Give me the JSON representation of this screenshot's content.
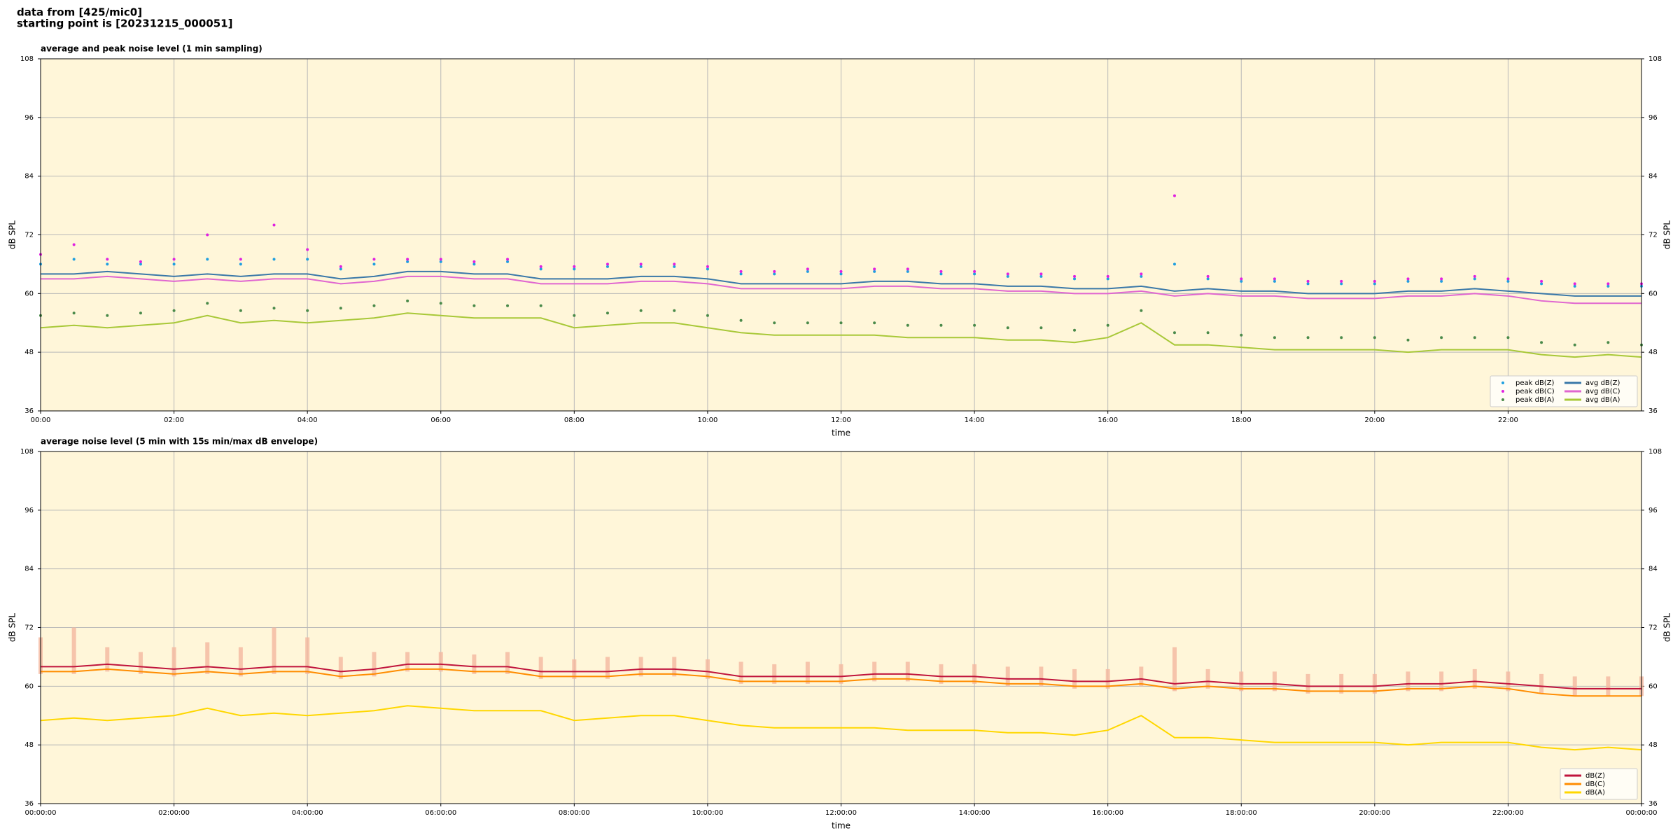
{
  "header": {
    "line1": "data from [425/mic0]",
    "line2": "starting point is [20231215_000051]"
  },
  "chart_data": [
    {
      "type": "combo",
      "title": "average and peak noise level (1 min sampling)",
      "xlabel": "time",
      "ylabel": "dB SPL",
      "x": [
        0,
        0.5,
        1,
        1.5,
        2,
        2.5,
        3,
        3.5,
        4,
        4.5,
        5,
        5.5,
        6,
        6.5,
        7,
        7.5,
        8,
        8.5,
        9,
        9.5,
        10,
        10.5,
        11,
        11.5,
        12,
        12.5,
        13,
        13.5,
        14,
        14.5,
        15,
        15.5,
        16,
        16.5,
        17,
        17.5,
        18,
        18.5,
        19,
        19.5,
        20,
        20.5,
        21,
        21.5,
        22,
        22.5,
        23,
        23.5,
        24
      ],
      "xlim": [
        0,
        24
      ],
      "xticks": [
        {
          "value": 0,
          "label": "00:00"
        },
        {
          "value": 2,
          "label": "02:00"
        },
        {
          "value": 4,
          "label": "04:00"
        },
        {
          "value": 6,
          "label": "06:00"
        },
        {
          "value": 8,
          "label": "08:00"
        },
        {
          "value": 10,
          "label": "10:00"
        },
        {
          "value": 12,
          "label": "12:00"
        },
        {
          "value": 14,
          "label": "14:00"
        },
        {
          "value": 16,
          "label": "16:00"
        },
        {
          "value": 18,
          "label": "18:00"
        },
        {
          "value": 20,
          "label": "20:00"
        },
        {
          "value": 22,
          "label": "22:00"
        }
      ],
      "ylim": [
        36,
        108
      ],
      "yticks": [
        36,
        48,
        60,
        72,
        84,
        96,
        108
      ],
      "grid": true,
      "legend": "lower right",
      "legend_columns": 2,
      "series": [
        {
          "name": "peak dB(Z)",
          "style": "dot",
          "color": "#1f9fe0",
          "values": [
            66,
            67,
            66,
            66,
            66,
            67,
            66,
            67,
            67,
            65,
            66,
            66.5,
            66.5,
            66,
            66.5,
            65,
            65,
            65.5,
            65.5,
            65.5,
            65,
            64,
            64,
            64.5,
            64,
            64.5,
            64.5,
            64,
            64,
            63.5,
            63.5,
            63,
            63,
            63.5,
            66,
            63,
            62.5,
            62.5,
            62,
            62,
            62,
            62.5,
            62.5,
            63,
            62.5,
            62,
            61.5,
            61.5,
            61.5
          ]
        },
        {
          "name": "peak dB(C)",
          "style": "dot",
          "color": "#e020e0",
          "values": [
            68,
            70,
            67,
            66.5,
            67,
            72,
            67,
            74,
            69,
            65.5,
            67,
            67,
            67,
            66.5,
            67,
            65.5,
            65.5,
            66,
            66,
            66,
            65.5,
            64.5,
            64.5,
            65,
            64.5,
            65,
            65,
            64.5,
            64.5,
            64,
            64,
            63.5,
            63.5,
            64,
            80,
            63.5,
            63,
            63,
            62.5,
            62.5,
            62.5,
            63,
            63,
            63.5,
            63,
            62.5,
            62,
            62,
            62
          ]
        },
        {
          "name": "peak dB(A)",
          "style": "dot",
          "color": "#4a8a4a",
          "values": [
            55.5,
            56,
            55.5,
            56,
            56.5,
            58,
            56.5,
            57,
            56.5,
            57,
            57.5,
            58.5,
            58,
            57.5,
            57.5,
            57.5,
            55.5,
            56,
            56.5,
            56.5,
            55.5,
            54.5,
            54,
            54,
            54,
            54,
            53.5,
            53.5,
            53.5,
            53,
            53,
            52.5,
            53.5,
            56.5,
            52,
            52,
            51.5,
            51,
            51,
            51,
            51,
            50.5,
            51,
            51,
            51,
            50,
            49.5,
            50,
            49.5
          ]
        },
        {
          "name": "avg dB(Z)",
          "style": "line",
          "color": "#3a78a8",
          "values": [
            64,
            64,
            64.5,
            64,
            63.5,
            64,
            63.5,
            64,
            64,
            63,
            63.5,
            64.5,
            64.5,
            64,
            64,
            63,
            63,
            63,
            63.5,
            63.5,
            63,
            62,
            62,
            62,
            62,
            62.5,
            62.5,
            62,
            62,
            61.5,
            61.5,
            61,
            61,
            61.5,
            60.5,
            61,
            60.5,
            60.5,
            60,
            60,
            60,
            60.5,
            60.5,
            61,
            60.5,
            60,
            59.5,
            59.5,
            59.5
          ]
        },
        {
          "name": "avg dB(C)",
          "style": "line",
          "color": "#e066d0",
          "values": [
            63,
            63,
            63.5,
            63,
            62.5,
            63,
            62.5,
            63,
            63,
            62,
            62.5,
            63.5,
            63.5,
            63,
            63,
            62,
            62,
            62,
            62.5,
            62.5,
            62,
            61,
            61,
            61,
            61,
            61.5,
            61.5,
            61,
            61,
            60.5,
            60.5,
            60,
            60,
            60.5,
            59.5,
            60,
            59.5,
            59.5,
            59,
            59,
            59,
            59.5,
            59.5,
            60,
            59.5,
            58.5,
            58,
            58,
            58
          ]
        },
        {
          "name": "avg dB(A)",
          "style": "line",
          "color": "#a8c838",
          "values": [
            53,
            53.5,
            53,
            53.5,
            54,
            55.5,
            54,
            54.5,
            54,
            54.5,
            55,
            56,
            55.5,
            55,
            55,
            55,
            53,
            53.5,
            54,
            54,
            53,
            52,
            51.5,
            51.5,
            51.5,
            51.5,
            51,
            51,
            51,
            50.5,
            50.5,
            50,
            51,
            54,
            49.5,
            49.5,
            49,
            48.5,
            48.5,
            48.5,
            48.5,
            48,
            48.5,
            48.5,
            48.5,
            47.5,
            47,
            47.5,
            47
          ]
        }
      ]
    },
    {
      "type": "line",
      "title": "average noise level (5 min with 15s min/max dB envelope)",
      "xlabel": "time",
      "ylabel": "dB SPL",
      "x": [
        0,
        0.5,
        1,
        1.5,
        2,
        2.5,
        3,
        3.5,
        4,
        4.5,
        5,
        5.5,
        6,
        6.5,
        7,
        7.5,
        8,
        8.5,
        9,
        9.5,
        10,
        10.5,
        11,
        11.5,
        12,
        12.5,
        13,
        13.5,
        14,
        14.5,
        15,
        15.5,
        16,
        16.5,
        17,
        17.5,
        18,
        18.5,
        19,
        19.5,
        20,
        20.5,
        21,
        21.5,
        22,
        22.5,
        23,
        23.5,
        24
      ],
      "xlim": [
        0,
        24
      ],
      "xticks": [
        {
          "value": 0,
          "label": "00:00:00"
        },
        {
          "value": 2,
          "label": "02:00:00"
        },
        {
          "value": 4,
          "label": "04:00:00"
        },
        {
          "value": 6,
          "label": "06:00:00"
        },
        {
          "value": 8,
          "label": "08:00:00"
        },
        {
          "value": 10,
          "label": "10:00:00"
        },
        {
          "value": 12,
          "label": "12:00:00"
        },
        {
          "value": 14,
          "label": "14:00:00"
        },
        {
          "value": 16,
          "label": "16:00:00"
        },
        {
          "value": 18,
          "label": "18:00:00"
        },
        {
          "value": 20,
          "label": "20:00:00"
        },
        {
          "value": 22,
          "label": "22:00:00"
        },
        {
          "value": 24,
          "label": "00:00:00"
        }
      ],
      "ylim": [
        36,
        108
      ],
      "yticks": [
        36,
        48,
        60,
        72,
        84,
        96,
        108
      ],
      "grid": true,
      "legend": "lower right",
      "legend_columns": 1,
      "envelope": {
        "color": "#f4b8a0",
        "high": [
          70,
          72,
          68,
          67,
          68,
          69,
          68,
          72,
          70,
          66,
          67,
          67,
          67,
          66.5,
          67,
          66,
          65.5,
          66,
          66,
          66,
          65.5,
          65,
          64.5,
          65,
          64.5,
          65,
          65,
          64.5,
          64.5,
          64,
          64,
          63.5,
          63.5,
          64,
          68,
          63.5,
          63,
          63,
          62.5,
          62.5,
          62.5,
          63,
          63,
          63.5,
          63,
          62.5,
          62,
          62,
          62
        ],
        "low": [
          62.5,
          62.5,
          63,
          62.5,
          62,
          62.5,
          62,
          62.5,
          62.5,
          61.5,
          62,
          63,
          63,
          62.5,
          62.5,
          61.5,
          61.5,
          61.5,
          62,
          62,
          61.5,
          60.5,
          60.5,
          60.5,
          60.5,
          61,
          61,
          60.5,
          60.5,
          60,
          60,
          59.5,
          59.5,
          60,
          59,
          59.5,
          59,
          59,
          58.5,
          58.5,
          58.5,
          59,
          59,
          59.5,
          59,
          58.5,
          58,
          58,
          58
        ]
      },
      "series": [
        {
          "name": "dB(Z)",
          "style": "line",
          "color": "#c0143c",
          "values": [
            64,
            64,
            64.5,
            64,
            63.5,
            64,
            63.5,
            64,
            64,
            63,
            63.5,
            64.5,
            64.5,
            64,
            64,
            63,
            63,
            63,
            63.5,
            63.5,
            63,
            62,
            62,
            62,
            62,
            62.5,
            62.5,
            62,
            62,
            61.5,
            61.5,
            61,
            61,
            61.5,
            60.5,
            61,
            60.5,
            60.5,
            60,
            60,
            60,
            60.5,
            60.5,
            61,
            60.5,
            60,
            59.5,
            59.5,
            59.5
          ]
        },
        {
          "name": "dB(C)",
          "style": "line",
          "color": "#ff8c00",
          "values": [
            63,
            63,
            63.5,
            63,
            62.5,
            63,
            62.5,
            63,
            63,
            62,
            62.5,
            63.5,
            63.5,
            63,
            63,
            62,
            62,
            62,
            62.5,
            62.5,
            62,
            61,
            61,
            61,
            61,
            61.5,
            61.5,
            61,
            61,
            60.5,
            60.5,
            60,
            60,
            60.5,
            59.5,
            60,
            59.5,
            59.5,
            59,
            59,
            59,
            59.5,
            59.5,
            60,
            59.5,
            58.5,
            58,
            58,
            58
          ]
        },
        {
          "name": "dB(A)",
          "style": "line",
          "color": "#ffd700",
          "values": [
            53,
            53.5,
            53,
            53.5,
            54,
            55.5,
            54,
            54.5,
            54,
            54.5,
            55,
            56,
            55.5,
            55,
            55,
            55,
            53,
            53.5,
            54,
            54,
            53,
            52,
            51.5,
            51.5,
            51.5,
            51.5,
            51,
            51,
            51,
            50.5,
            50.5,
            50,
            51,
            54,
            49.5,
            49.5,
            49,
            48.5,
            48.5,
            48.5,
            48.5,
            48,
            48.5,
            48.5,
            48.5,
            47.5,
            47,
            47.5,
            47
          ]
        }
      ]
    }
  ]
}
